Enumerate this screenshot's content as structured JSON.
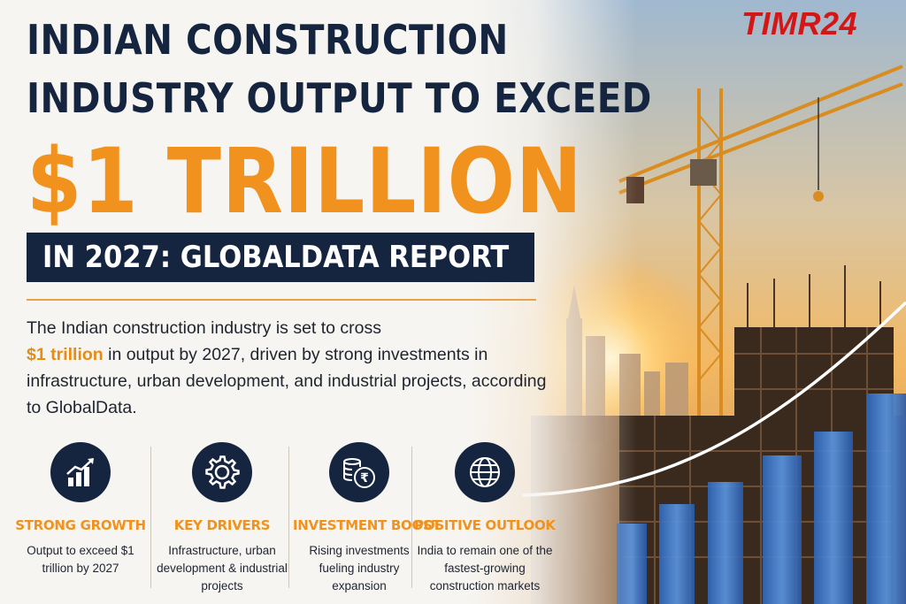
{
  "brand": {
    "name": "TIMR24",
    "color": "#d41616"
  },
  "headline": {
    "line1": "INDIAN CONSTRUCTION",
    "line2": "INDUSTRY OUTPUT TO EXCEED",
    "line3": "$1 TRILLION",
    "banner": "IN 2027: GLOBALDATA REPORT"
  },
  "intro": {
    "part1": "The Indian construction industry is set to cross",
    "highlight": "$1 trillion",
    "part2": " in output by 2027, driven by strong investments in infrastructure, urban development, and industrial projects, according to GlobalData."
  },
  "features": [
    {
      "icon": "bar-chart-growth-icon",
      "title": "STRONG GROWTH",
      "desc": "Output to exceed $1 trillion by 2027"
    },
    {
      "icon": "gear-icon",
      "title": "KEY DRIVERS",
      "desc": "Infrastructure, urban development & industrial projects"
    },
    {
      "icon": "coins-rupee-icon",
      "title": "INVESTMENT BOOST",
      "desc": "Rising investments fueling industry expansion"
    },
    {
      "icon": "globe-icon",
      "title": "POSITIVE OUTLOOK",
      "desc": "India to remain one of the fastest-growing construction markets"
    }
  ],
  "colors": {
    "navy": "#152540",
    "orange": "#f0921d",
    "text": "#1e2430"
  }
}
